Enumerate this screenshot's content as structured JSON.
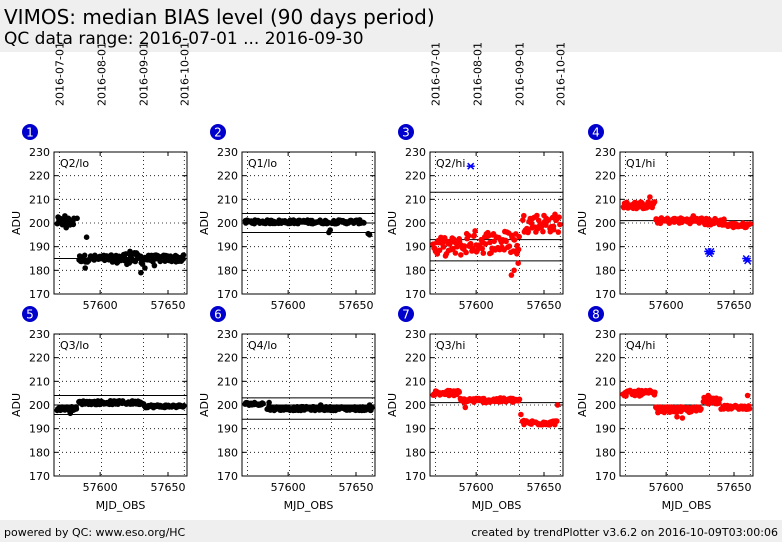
{
  "header": {
    "title": "VIMOS: median BIAS level (90 days period)",
    "subtitle": "QC data range: 2016-07-01 ... 2016-09-30"
  },
  "footer": {
    "left": "powered by QC: www.eso.org/HC",
    "right": "created by trendPlotter v3.6.2 on 2016-10-09T03:00:06"
  },
  "colors": {
    "normal": "#000000",
    "hi": "#ff0000",
    "outlier": "#0000ff",
    "badge": "#0000cc"
  },
  "chart_data": {
    "type": "scatter",
    "xlabel": "MJD_OBS",
    "ylabel": "ADU",
    "xlim": [
      57566,
      57664
    ],
    "ylim": [
      170,
      230
    ],
    "yticks": [
      170,
      180,
      190,
      200,
      210,
      220,
      230
    ],
    "xticks": [
      57600,
      57650
    ],
    "date_ticks": [
      {
        "label": "2016-07-01",
        "mjd": 57570
      },
      {
        "label": "2016-08-01",
        "mjd": 57601
      },
      {
        "label": "2016-09-01",
        "mjd": 57632
      },
      {
        "label": "2016-10-01",
        "mjd": 57662
      }
    ],
    "grid": true,
    "panels": [
      {
        "number": "1",
        "label": "Q2/lo",
        "color": "black",
        "ref": 185,
        "segments": [
          [
            57568,
            57581,
            200.5,
            2.0
          ],
          [
            57584,
            57612,
            185,
            1.5
          ],
          [
            57612,
            57632,
            185,
            2.5
          ],
          [
            57632,
            57662,
            185,
            1.5
          ]
        ],
        "outliers": [
          [
            57574,
            203
          ],
          [
            57575,
            198
          ],
          [
            57580,
            201
          ],
          [
            57583,
            202
          ],
          [
            57590,
            194
          ],
          [
            57589,
            181
          ],
          [
            57622,
            188
          ],
          [
            57630,
            179
          ],
          [
            57633,
            181
          ],
          [
            57640,
            182
          ]
        ]
      },
      {
        "number": "2",
        "label": "Q1/lo",
        "color": "black",
        "ref": 200,
        "limits": [
          196,
          204
        ],
        "segments": [
          [
            57568,
            57630,
            200.5,
            0.8
          ],
          [
            57632,
            57656,
            200.5,
            0.8
          ]
        ],
        "outliers": [
          [
            57630,
            196
          ],
          [
            57631,
            197
          ],
          [
            57659,
            195.5
          ],
          [
            57660,
            195
          ]
        ]
      },
      {
        "number": "3",
        "label": "Q2/hi",
        "color": "red",
        "ref": 193,
        "limits": [
          184,
          213
        ],
        "segments": [
          [
            57568,
            57592,
            190,
            4.0
          ],
          [
            57592,
            57632,
            192,
            5.0
          ],
          [
            57634,
            57662,
            200,
            4.0
          ]
        ],
        "outliers": [
          [
            57596,
            224,
            "blue"
          ],
          [
            57626,
            178
          ],
          [
            57628,
            180
          ],
          [
            57630,
            187
          ],
          [
            57631,
            183
          ]
        ]
      },
      {
        "number": "4",
        "label": "Q1/hi",
        "color": "red",
        "ref": 201,
        "segments": [
          [
            57568,
            57592,
            207.5,
            1.5
          ],
          [
            57592,
            57628,
            201,
            1.2
          ],
          [
            57628,
            57644,
            200.5,
            1.5
          ],
          [
            57644,
            57662,
            199,
            1.0
          ]
        ],
        "outliers": [
          [
            57631,
            188,
            "blue"
          ],
          [
            57632,
            187,
            "blue"
          ],
          [
            57633,
            188,
            "blue"
          ],
          [
            57659,
            185,
            "blue"
          ],
          [
            57660,
            184,
            "blue"
          ],
          [
            57588,
            211
          ],
          [
            57620,
            203
          ]
        ]
      },
      {
        "number": "5",
        "label": "Q3/lo",
        "color": "black",
        "ref": 200,
        "limits": [
          196,
          204
        ],
        "segments": [
          [
            57568,
            57583,
            198.5,
            0.8
          ],
          [
            57584,
            57632,
            201,
            0.8
          ],
          [
            57632,
            57662,
            199.5,
            0.6
          ]
        ],
        "outliers": [
          [
            57578,
            196.5
          ]
        ]
      },
      {
        "number": "6",
        "label": "Q4/lo",
        "color": "black",
        "ref": 200,
        "limits": [
          194,
          203
        ],
        "segments": [
          [
            57568,
            57582,
            200.5,
            0.6
          ],
          [
            57584,
            57662,
            198.5,
            0.8
          ]
        ],
        "outliers": [
          [
            57586,
            201
          ],
          [
            57624,
            200
          ],
          [
            57660,
            200
          ]
        ]
      },
      {
        "number": "7",
        "label": "Q3/hi",
        "color": "red",
        "ref": 201,
        "segments": [
          [
            57568,
            57588,
            205,
            1.2
          ],
          [
            57588,
            57632,
            202,
            1.0
          ],
          [
            57634,
            57660,
            192.5,
            1.0
          ]
        ],
        "outliers": [
          [
            57580,
            204
          ],
          [
            57592,
            199
          ],
          [
            57633,
            196
          ],
          [
            57660,
            200
          ]
        ]
      },
      {
        "number": "8",
        "label": "Q4/hi",
        "color": "red",
        "ref": 200,
        "segments": [
          [
            57568,
            57592,
            205,
            1.2
          ],
          [
            57592,
            57626,
            198,
            1.2
          ],
          [
            57627,
            57640,
            202,
            1.5
          ],
          [
            57640,
            57662,
            199,
            0.8
          ]
        ],
        "outliers": [
          [
            57608,
            195
          ],
          [
            57612,
            194.5
          ],
          [
            57631,
            204
          ],
          [
            57660,
            204
          ]
        ]
      }
    ]
  }
}
